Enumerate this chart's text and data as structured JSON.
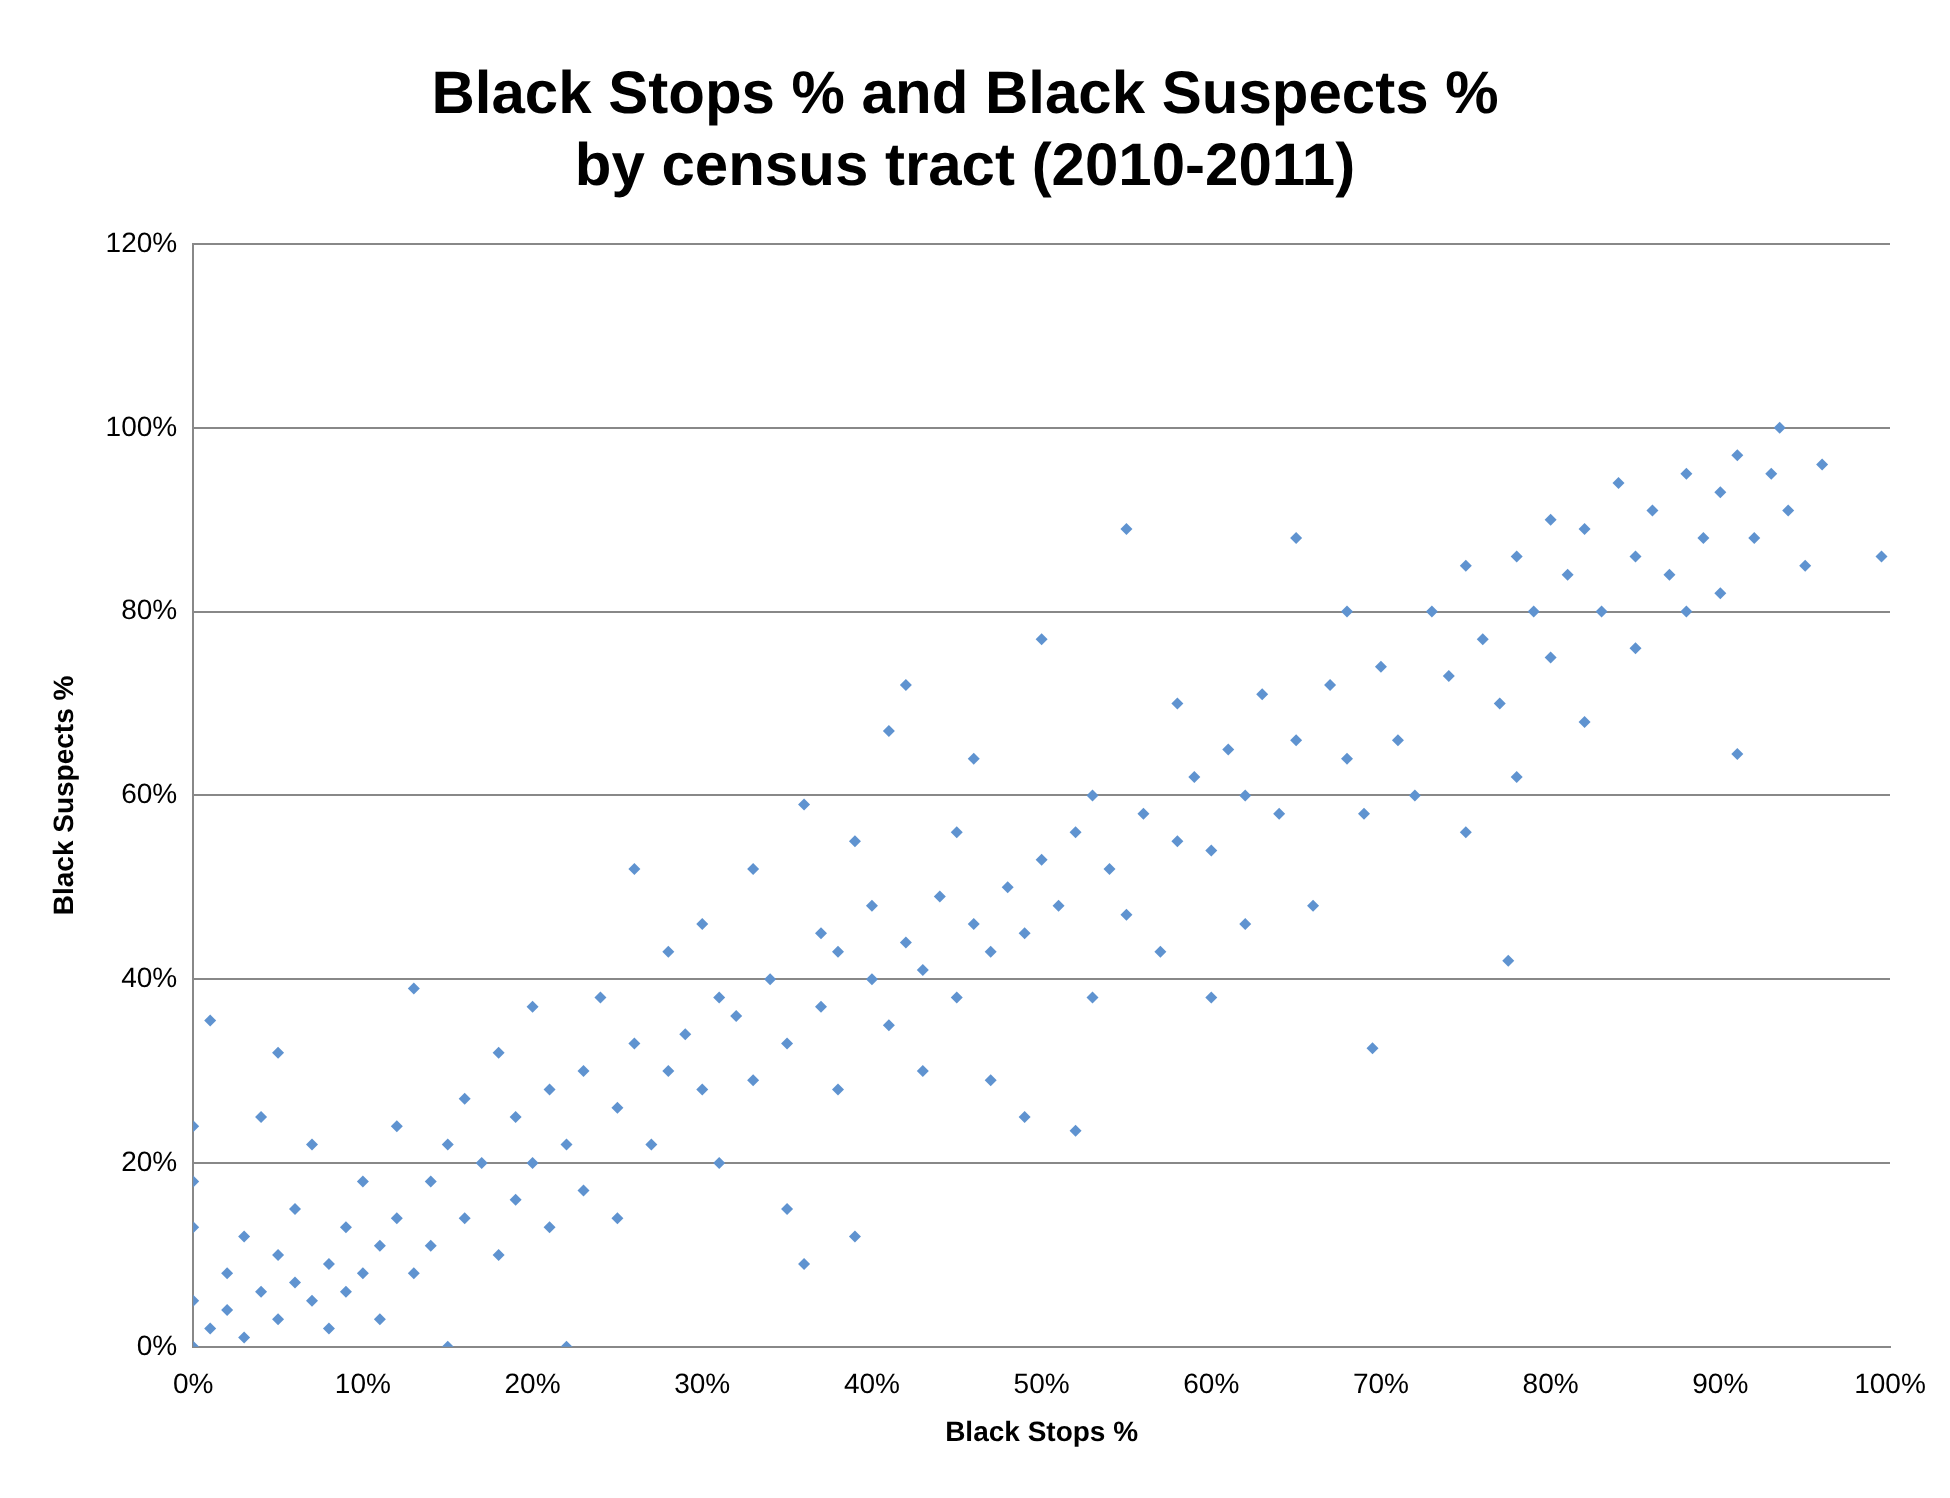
{
  "chart_data": {
    "type": "scatter",
    "title": "Black Stops % and Black Suspects %\nby census tract (2010-2011)",
    "xlabel": "Black Stops %",
    "ylabel": "Black Suspects %",
    "xlim": [
      0,
      100
    ],
    "ylim": [
      0,
      120
    ],
    "xticks": [
      {
        "value": 0,
        "label": "0%"
      },
      {
        "value": 10,
        "label": "10%"
      },
      {
        "value": 20,
        "label": "20%"
      },
      {
        "value": 30,
        "label": "30%"
      },
      {
        "value": 40,
        "label": "40%"
      },
      {
        "value": 50,
        "label": "50%"
      },
      {
        "value": 60,
        "label": "60%"
      },
      {
        "value": 70,
        "label": "70%"
      },
      {
        "value": 80,
        "label": "80%"
      },
      {
        "value": 90,
        "label": "90%"
      },
      {
        "value": 100,
        "label": "100%"
      }
    ],
    "yticks": [
      {
        "value": 0,
        "label": "0%"
      },
      {
        "value": 20,
        "label": "20%"
      },
      {
        "value": 40,
        "label": "40%"
      },
      {
        "value": 60,
        "label": "60%"
      },
      {
        "value": 80,
        "label": "80%"
      },
      {
        "value": 100,
        "label": "100%"
      },
      {
        "value": 120,
        "label": "120%"
      }
    ],
    "grid": "y",
    "marker": "diamond",
    "legend": false,
    "series": [
      {
        "color": "#5f93d0",
        "x": [
          0,
          0,
          0,
          0,
          0,
          1,
          1,
          2,
          2,
          3,
          3,
          4,
          4,
          5,
          5,
          5,
          6,
          6,
          7,
          7,
          8,
          8,
          9,
          9,
          10,
          10,
          11,
          11,
          12,
          12,
          13,
          13,
          14,
          14,
          15,
          15,
          16,
          16,
          17,
          18,
          18,
          19,
          19,
          20,
          20,
          21,
          21,
          22,
          22,
          23,
          23,
          24,
          25,
          25,
          26,
          26,
          27,
          28,
          28,
          29,
          30,
          30,
          31,
          31,
          32,
          33,
          33,
          34,
          35,
          35,
          36,
          36,
          37,
          37,
          38,
          38,
          39,
          39,
          40,
          40,
          41,
          41,
          42,
          42,
          43,
          43,
          44,
          45,
          45,
          46,
          46,
          47,
          47,
          48,
          49,
          49,
          50,
          50,
          51,
          52,
          52,
          53,
          53,
          54,
          55,
          55,
          56,
          57,
          58,
          58,
          59,
          60,
          60,
          61,
          62,
          62,
          63,
          64,
          65,
          65,
          66,
          67,
          68,
          68,
          69,
          69.5,
          70,
          71,
          72,
          73,
          74,
          75,
          75,
          76,
          77,
          77.5,
          78,
          78,
          79,
          80,
          80,
          81,
          82,
          82,
          83,
          84,
          85,
          85,
          86,
          87,
          88,
          88,
          89,
          90,
          90,
          91,
          91,
          92,
          93,
          93.5,
          94,
          95,
          96,
          99.5
        ],
        "values": [
          0,
          5,
          13,
          18,
          24,
          35.5,
          2,
          8,
          4,
          12,
          1,
          6,
          25,
          3,
          10,
          32,
          7,
          15,
          5,
          22,
          9,
          2,
          13,
          6,
          18,
          8,
          11,
          3,
          24,
          14,
          39,
          8,
          18,
          11,
          22,
          0,
          14,
          27,
          20,
          10,
          32,
          25,
          16,
          20,
          37,
          13,
          28,
          22,
          0,
          30,
          17,
          38,
          26,
          14,
          52,
          33,
          22,
          30,
          43,
          34,
          28,
          46,
          20,
          38,
          36,
          52,
          29,
          40,
          33,
          15,
          59,
          9,
          45,
          37,
          43,
          28,
          12,
          55,
          40,
          48,
          35,
          67,
          72,
          44,
          41,
          30,
          49,
          38,
          56,
          46,
          64,
          43,
          29,
          50,
          25,
          45,
          77,
          53,
          48,
          23.5,
          56,
          38,
          60,
          52,
          89,
          47,
          58,
          43,
          55,
          70,
          62,
          54,
          38,
          65,
          60,
          46,
          71,
          58,
          88,
          66,
          48,
          72,
          64,
          80,
          58,
          32.5,
          74,
          66,
          60,
          80,
          73,
          85,
          56,
          77,
          70,
          42,
          86,
          62,
          80,
          90,
          75,
          84,
          89,
          68,
          80,
          94,
          86,
          76,
          91,
          84,
          95,
          80,
          88,
          93,
          82,
          64.5,
          97,
          88,
          95,
          100,
          91,
          85,
          96,
          86
        ]
      }
    ]
  }
}
